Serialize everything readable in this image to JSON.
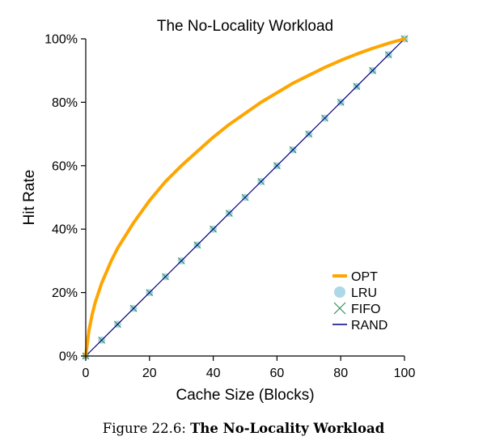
{
  "chart_data": {
    "type": "line",
    "title": "The No-Locality Workload",
    "xlabel": "Cache Size (Blocks)",
    "ylabel": "Hit Rate",
    "xlim": [
      0,
      100
    ],
    "ylim": [
      0,
      100
    ],
    "x_ticks": [
      0,
      20,
      40,
      60,
      80,
      100
    ],
    "y_ticks": [
      0,
      20,
      40,
      60,
      80,
      100
    ],
    "y_tick_labels": [
      "0%",
      "20%",
      "40%",
      "60%",
      "80%",
      "100%"
    ],
    "legend_position": "bottom-right",
    "grid": false,
    "series": [
      {
        "name": "OPT",
        "style": "thick-line",
        "color": "#FFA500",
        "x": [
          0,
          1,
          2,
          3,
          5,
          8,
          10,
          15,
          20,
          25,
          30,
          35,
          40,
          45,
          50,
          55,
          60,
          65,
          70,
          75,
          80,
          85,
          90,
          95,
          100
        ],
        "y": [
          0,
          8,
          13,
          17,
          23,
          30,
          34,
          42,
          49,
          55,
          60,
          64.5,
          69,
          73,
          76.5,
          80,
          83,
          86,
          88.5,
          91,
          93.2,
          95.2,
          97,
          98.6,
          100
        ]
      },
      {
        "name": "LRU",
        "style": "circles",
        "color": "#ADD8E6",
        "x": [
          0,
          5,
          10,
          15,
          20,
          25,
          30,
          35,
          40,
          45,
          50,
          55,
          60,
          65,
          70,
          75,
          80,
          85,
          90,
          95,
          100
        ],
        "y": [
          0,
          5,
          10,
          15,
          20,
          25,
          30,
          35,
          40,
          45,
          50,
          55,
          60,
          65,
          70,
          75,
          80,
          85,
          90,
          95,
          100
        ]
      },
      {
        "name": "FIFO",
        "style": "crosses",
        "color": "#2E8B57",
        "x": [
          0,
          5,
          10,
          15,
          20,
          25,
          30,
          35,
          40,
          45,
          50,
          55,
          60,
          65,
          70,
          75,
          80,
          85,
          90,
          95,
          100
        ],
        "y": [
          0,
          5,
          10,
          15,
          20,
          25,
          30,
          35,
          40,
          45,
          50,
          55,
          60,
          65,
          70,
          75,
          80,
          85,
          90,
          95,
          100
        ]
      },
      {
        "name": "RAND",
        "style": "thin-line",
        "color": "#000080",
        "x": [
          0,
          5,
          10,
          15,
          20,
          25,
          30,
          35,
          40,
          45,
          50,
          55,
          60,
          65,
          70,
          75,
          80,
          85,
          90,
          95,
          100
        ],
        "y": [
          0,
          5,
          10,
          15,
          20,
          25,
          30,
          35,
          40,
          45,
          50,
          55,
          60,
          65,
          70,
          75,
          80,
          85,
          90,
          95,
          100
        ]
      }
    ]
  },
  "caption": {
    "prefix": "Figure 22.6: ",
    "title": "The No-Locality Workload"
  }
}
